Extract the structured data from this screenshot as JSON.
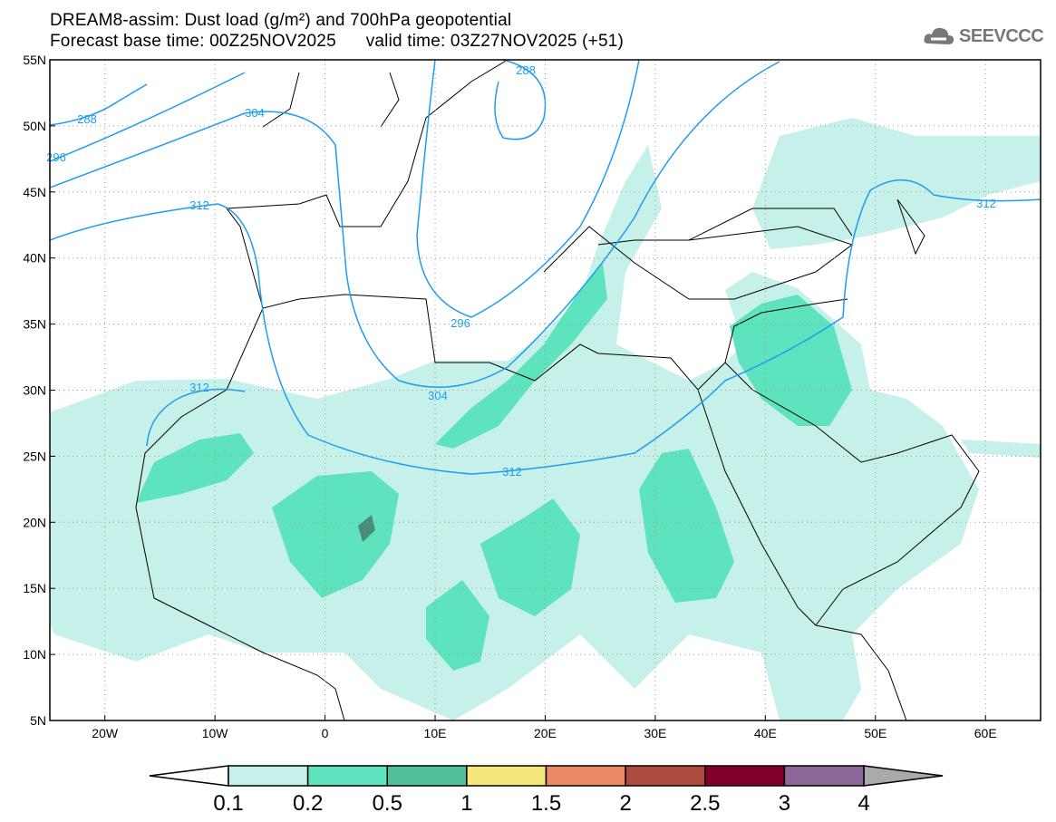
{
  "header": {
    "title": "DREAM8-assim: Dust load (g/m²) and 700hPa geopotential",
    "base_time": "Forecast base time: 00Z25NOV2025",
    "valid_time": "valid time: 03Z27NOV2025 (+51)",
    "logo_text": "SEEVCCC"
  },
  "map": {
    "lat_ticks": [
      "55N",
      "50N",
      "45N",
      "40N",
      "35N",
      "30N",
      "25N",
      "20N",
      "15N",
      "10N",
      "5N"
    ],
    "lon_ticks": [
      "20W",
      "10W",
      "0",
      "10E",
      "20E",
      "30E",
      "40E",
      "50E",
      "60E"
    ],
    "contour_labels": [
      "288",
      "296",
      "304",
      "312",
      "288",
      "304",
      "296",
      "304",
      "312",
      "312",
      "312"
    ],
    "colors": {
      "contour": "#1f9cf0",
      "dust_low": "#c5f1ea",
      "dust_mid": "#5de3bd",
      "dust_high": "#52bf9b",
      "dust_peak": "#4a8c78"
    }
  },
  "colorbar": {
    "labels": [
      "0.1",
      "0.2",
      "0.5",
      "1",
      "1.5",
      "2",
      "2.5",
      "3",
      "4"
    ],
    "colors": [
      "#c5f1ea",
      "#5de3bd",
      "#52bf9b",
      "#f5e67a",
      "#ec8a68",
      "#ad4a3e",
      "#82002c",
      "#8a6699"
    ],
    "under_color": "#ffffff",
    "over_color": "#aaaaaa"
  }
}
